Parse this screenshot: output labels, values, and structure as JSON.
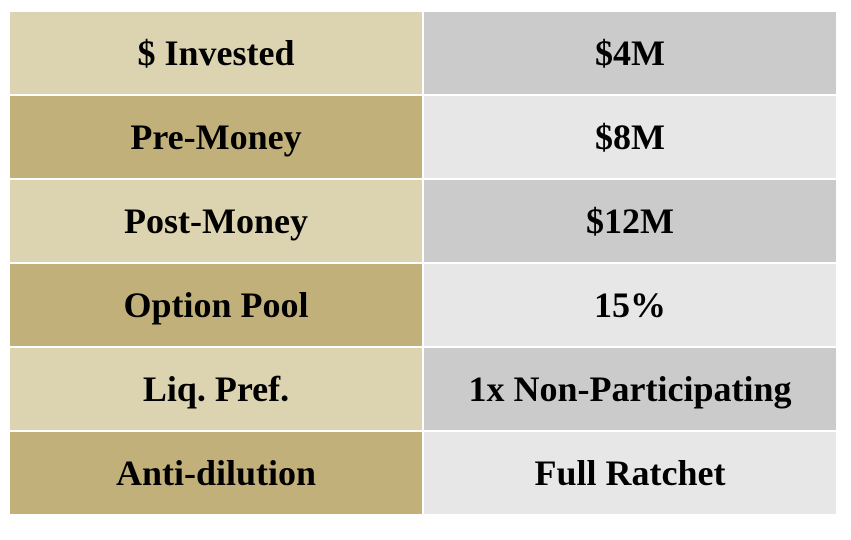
{
  "table": {
    "rows": [
      [
        "$ Invested",
        "$4M"
      ],
      [
        "Pre-Money",
        "$8M"
      ],
      [
        "Post-Money",
        "$12M"
      ],
      [
        "Option Pool",
        "15%"
      ],
      [
        "Liq. Pref.",
        "1x Non-Participating"
      ],
      [
        "Anti-dilution",
        "Full Ratchet"
      ]
    ]
  }
}
